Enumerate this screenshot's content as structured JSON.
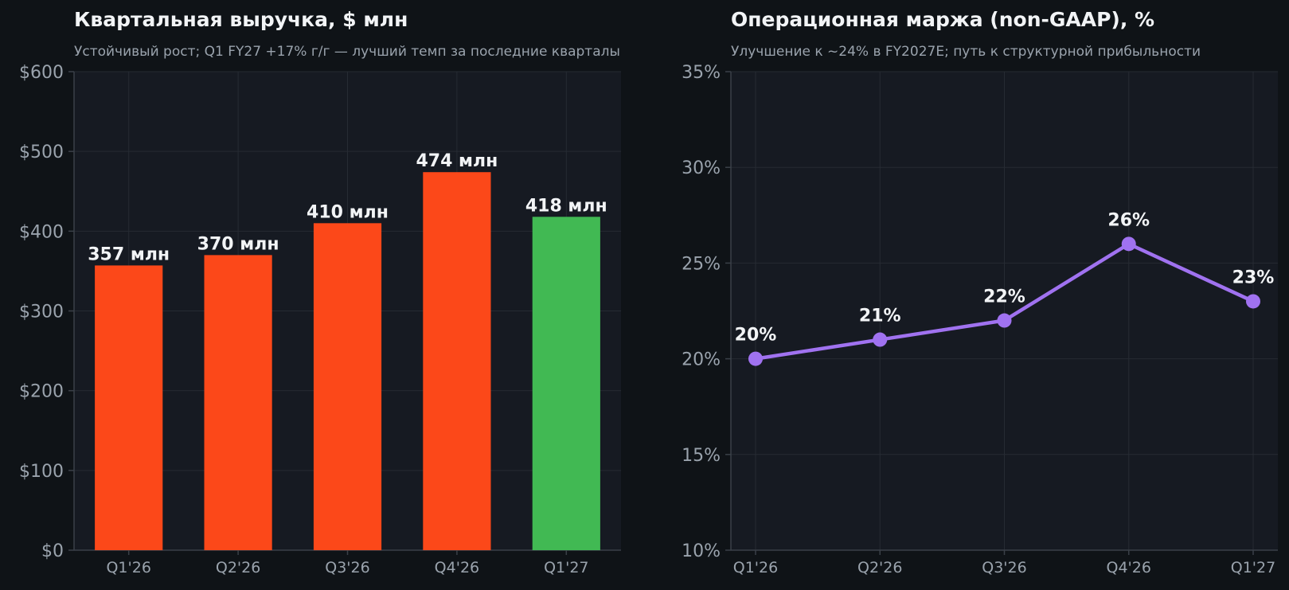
{
  "colors": {
    "background": "#0f1317",
    "plot_background": "#161a22",
    "grid": "#262b33",
    "axis": "#3a4048",
    "tick_text": "#9aa3ad",
    "label_text": "#f2f4f6",
    "bar_default": "#fc4819",
    "bar_highlight": "#41b953",
    "line": "#a072f0"
  },
  "chart_data": [
    {
      "type": "bar",
      "title": "Квартальная выручка, $ млн",
      "subtitle": "Устойчивый рост; Q1 FY27 +17% г/г — лучший темп за последние кварталы",
      "categories": [
        "Q1'26",
        "Q2'26",
        "Q3'26",
        "Q4'26",
        "Q1'27"
      ],
      "values": [
        357,
        370,
        410,
        474,
        418
      ],
      "data_labels": [
        "357 млн",
        "370 млн",
        "410 млн",
        "474 млн",
        "418 млн"
      ],
      "highlight_index": 4,
      "ylim": [
        0,
        600
      ],
      "yticks": [
        0,
        100,
        200,
        300,
        400,
        500,
        600
      ],
      "ytick_labels": [
        "$0",
        "$100",
        "$200",
        "$300",
        "$400",
        "$500",
        "$600"
      ],
      "grid": true,
      "legend": "none"
    },
    {
      "type": "line",
      "title": "Операционная маржа (non-GAAP), %",
      "subtitle": "Улучшение к ~24% в FY2027E; путь к структурной прибыльности",
      "categories": [
        "Q1'26",
        "Q2'26",
        "Q3'26",
        "Q4'26",
        "Q1'27"
      ],
      "values": [
        20,
        21,
        22,
        26,
        23
      ],
      "data_labels": [
        "20%",
        "21%",
        "22%",
        "26%",
        "23%"
      ],
      "ylim": [
        10,
        35
      ],
      "yticks": [
        10,
        15,
        20,
        25,
        30,
        35
      ],
      "ytick_labels": [
        "10%",
        "15%",
        "20%",
        "25%",
        "30%",
        "35%"
      ],
      "grid": true,
      "legend": "none"
    }
  ]
}
